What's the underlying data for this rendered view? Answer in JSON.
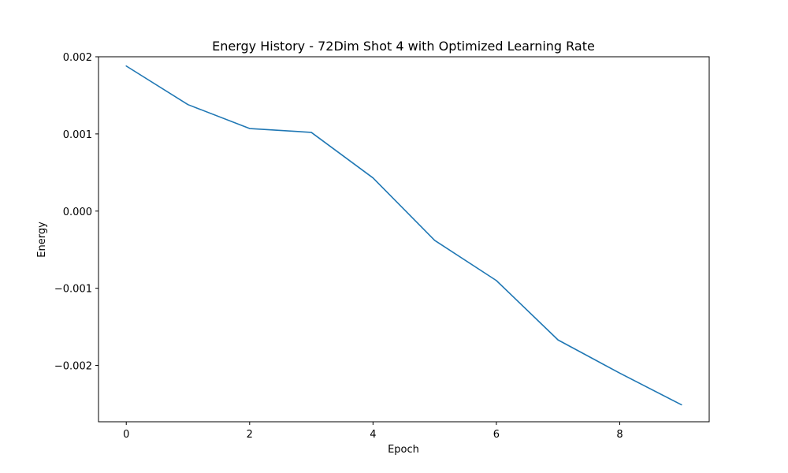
{
  "chart_data": {
    "type": "line",
    "title": "Energy History - 72Dim Shot 4 with Optimized Learning Rate",
    "xlabel": "Epoch",
    "ylabel": "Energy",
    "x": [
      0,
      1,
      2,
      3,
      4,
      5,
      6,
      7,
      8,
      9
    ],
    "series": [
      {
        "values": [
          0.00188,
          0.00138,
          0.00107,
          0.00102,
          0.00043,
          -0.00038,
          -0.0009,
          -0.00167,
          -0.0021,
          -0.00251
        ],
        "color": "#1f77b4"
      }
    ],
    "xlim": [
      -0.45,
      9.45
    ],
    "ylim": [
      -0.00273,
      0.002
    ],
    "xticks": [
      0,
      2,
      4,
      6,
      8
    ],
    "xtick_labels": [
      "0",
      "2",
      "4",
      "6",
      "8"
    ],
    "yticks": [
      0.002,
      0.001,
      0.0,
      -0.001,
      -0.002
    ],
    "ytick_labels": [
      "0.002",
      "0.001",
      "0.000",
      "−0.001",
      "−0.002"
    ],
    "grid": false,
    "legend": "none"
  }
}
